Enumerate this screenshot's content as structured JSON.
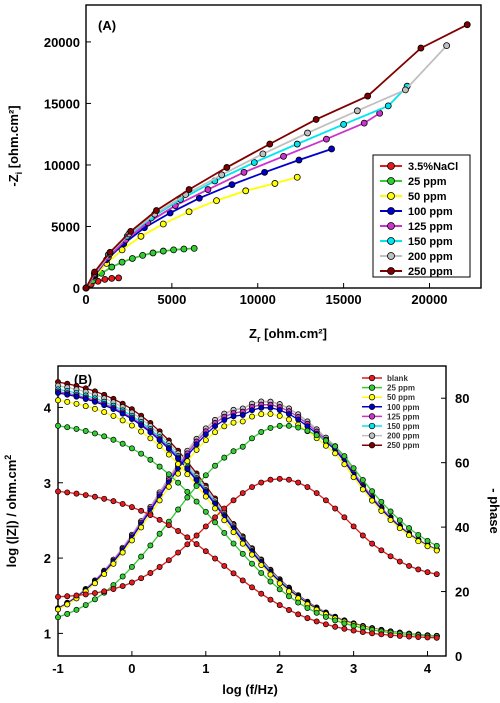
{
  "chart_data": [
    {
      "panel": "(A)",
      "type": "scatter",
      "xlabel_main": "Z",
      "xlabel_sub": "r",
      "xlabel_rest": " [ohm.cm²]",
      "ylabel_main": "-Z",
      "ylabel_sub": "i",
      "ylabel_rest": " [ohm.cm²]",
      "xlim": [
        0,
        23000
      ],
      "ylim": [
        0,
        23000
      ],
      "xticks": [
        0,
        5000,
        10000,
        15000,
        20000
      ],
      "yticks": [
        0,
        5000,
        10000,
        15000,
        20000
      ],
      "legend_position": "lower-right",
      "series": [
        {
          "name": "3.5%NaCl",
          "color": "#e41a1c",
          "x": [
            0,
            300,
            700,
            1100,
            1500,
            1900
          ],
          "y": [
            0,
            300,
            550,
            700,
            780,
            820
          ]
        },
        {
          "name": "25 ppm",
          "color": "#33cc33",
          "x": [
            0,
            400,
            900,
            1500,
            2100,
            2700,
            3300,
            3900,
            4500,
            5100,
            5700,
            6300
          ],
          "y": [
            0,
            600,
            1200,
            1700,
            2100,
            2400,
            2650,
            2850,
            3000,
            3100,
            3170,
            3220
          ]
        },
        {
          "name": "50 ppm",
          "color": "#ffff00",
          "x": [
            0,
            500,
            1200,
            2100,
            3200,
            4500,
            6000,
            7600,
            9300,
            11000,
            12300
          ],
          "y": [
            0,
            900,
            2000,
            3100,
            4200,
            5200,
            6200,
            7100,
            7900,
            8500,
            9000
          ]
        },
        {
          "name": "100 ppm",
          "color": "#0000cc",
          "x": [
            0,
            500,
            1200,
            2200,
            3400,
            4900,
            6600,
            8500,
            10400,
            12400,
            14300
          ],
          "y": [
            0,
            1000,
            2300,
            3600,
            4900,
            6100,
            7300,
            8400,
            9400,
            10400,
            11300
          ]
        },
        {
          "name": "125 ppm",
          "color": "#cc33cc",
          "x": [
            0,
            500,
            1300,
            2300,
            3600,
            5200,
            7100,
            9200,
            11500,
            14000,
            16200,
            17100
          ],
          "y": [
            0,
            1100,
            2500,
            3900,
            5300,
            6700,
            8000,
            9400,
            10700,
            12100,
            13400,
            14200
          ]
        },
        {
          "name": "150 ppm",
          "color": "#00e5ee",
          "x": [
            0,
            500,
            1300,
            2400,
            3800,
            5500,
            7500,
            9800,
            12300,
            15000,
            17600,
            18700
          ],
          "y": [
            0,
            1200,
            2700,
            4200,
            5700,
            7200,
            8700,
            10200,
            11700,
            13300,
            14800,
            16400
          ]
        },
        {
          "name": "200 ppm",
          "color": "#c0c0c0",
          "x": [
            0,
            500,
            1400,
            2500,
            4000,
            5800,
            7900,
            10300,
            12900,
            15800,
            18600,
            21000
          ],
          "y": [
            0,
            1200,
            2800,
            4400,
            6000,
            7600,
            9200,
            10900,
            12600,
            14400,
            16100,
            19700
          ]
        },
        {
          "name": "250 ppm",
          "color": "#800000",
          "x": [
            0,
            500,
            1400,
            2600,
            4100,
            6000,
            8200,
            10700,
            13400,
            16400,
            19500,
            22200
          ],
          "y": [
            0,
            1300,
            2900,
            4600,
            6300,
            8000,
            9800,
            11700,
            13700,
            15600,
            19500,
            21400
          ]
        }
      ]
    },
    {
      "panel": "(B)",
      "type": "line",
      "xlabel": "log (f/Hz)",
      "ylabel_left": "log (|Z|) / ohm.cm",
      "ylabel_left_sup": "2",
      "ylabel_right": "- phase",
      "xlim": [
        -1,
        4.25
      ],
      "ylim_left": [
        0.7,
        4.55
      ],
      "ylim_right": [
        0,
        90
      ],
      "xticks": [
        -1,
        0,
        1,
        2,
        3,
        4
      ],
      "yticks_left": [
        1,
        2,
        3,
        4
      ],
      "yticks_right": [
        0,
        20,
        40,
        60,
        80
      ],
      "legend_position": "top-right",
      "series": [
        {
          "name": "blank",
          "color": "#e41a1c",
          "logZ_low": 2.95,
          "logZ_high": 0.92,
          "phase_max": 55,
          "phase_peak_logf": 2.0
        },
        {
          "name": "25 ppm",
          "color": "#33cc33",
          "logZ_low": 3.85,
          "logZ_high": 0.93,
          "phase_max": 70,
          "phase_peak_logf": 1.7
        },
        {
          "name": "50 ppm",
          "color": "#ffff00",
          "logZ_low": 4.2,
          "logZ_high": 0.93,
          "phase_max": 77,
          "phase_peak_logf": 1.5
        },
        {
          "name": "100 ppm",
          "color": "#0000cc",
          "logZ_low": 4.3,
          "logZ_high": 0.93,
          "phase_max": 79,
          "phase_peak_logf": 1.5
        },
        {
          "name": "125 ppm",
          "color": "#cc33cc",
          "logZ_low": 4.32,
          "logZ_high": 0.93,
          "phase_max": 80,
          "phase_peak_logf": 1.5
        },
        {
          "name": "150 ppm",
          "color": "#00e5ee",
          "logZ_low": 4.35,
          "logZ_high": 0.93,
          "phase_max": 80,
          "phase_peak_logf": 1.5
        },
        {
          "name": "200 ppm",
          "color": "#c0c0c0",
          "logZ_low": 4.4,
          "logZ_high": 0.93,
          "phase_max": 81,
          "phase_peak_logf": 1.5
        },
        {
          "name": "250 ppm",
          "color": "#800000",
          "logZ_low": 4.45,
          "logZ_high": 0.93,
          "phase_max": 81,
          "phase_peak_logf": 1.5
        }
      ]
    }
  ]
}
